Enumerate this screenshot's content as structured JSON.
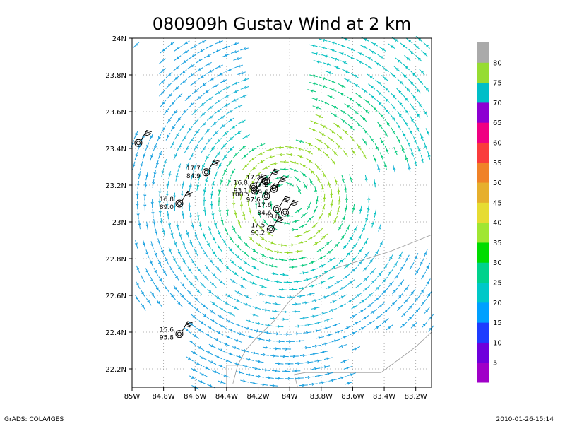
{
  "chart_data": {
    "type": "vector-field",
    "title": "080909h Gustav Wind at 2 km",
    "xlabel": "",
    "ylabel": "",
    "xlim": [
      -85.0,
      -83.1
    ],
    "ylim": [
      22.1,
      24.0
    ],
    "x_ticks": [
      "85W",
      "84.8W",
      "84.6W",
      "84.4W",
      "84.2W",
      "84W",
      "83.8W",
      "83.6W",
      "83.4W",
      "83.2W"
    ],
    "x_tick_values": [
      -85.0,
      -84.8,
      -84.6,
      -84.4,
      -84.2,
      -84.0,
      -83.8,
      -83.6,
      -83.4,
      -83.2
    ],
    "y_ticks": [
      "22.2N",
      "22.4N",
      "22.6N",
      "22.8N",
      "23N",
      "23.2N",
      "23.4N",
      "23.6N",
      "23.8N",
      "24N"
    ],
    "y_tick_values": [
      22.2,
      22.4,
      22.6,
      22.8,
      23.0,
      23.2,
      23.4,
      23.6,
      23.8,
      24.0
    ],
    "grid": true,
    "storm_center": {
      "lon": -84.02,
      "lat": 23.12
    },
    "colorbar": {
      "labels": [
        "5",
        "10",
        "15",
        "20",
        "25",
        "30",
        "35",
        "40",
        "45",
        "50",
        "55",
        "60",
        "65",
        "70",
        "75",
        "80"
      ],
      "colors": [
        "#a000c8",
        "#6e00dc",
        "#1e3cff",
        "#00a0ff",
        "#00c8c8",
        "#00d28c",
        "#00dc00",
        "#a0e632",
        "#e6dc32",
        "#e6af2d",
        "#f08228",
        "#fa3c3c",
        "#f00082",
        "#8c00d2",
        "#00bec8",
        "#96dc32",
        "#aaaaaa"
      ]
    },
    "observations": [
      {
        "lon": -84.53,
        "lat": 23.27,
        "upper": "17.7",
        "lower": "84.9"
      },
      {
        "lon": -84.7,
        "lat": 23.1,
        "upper": "16.8",
        "lower": "89.0"
      },
      {
        "lon": -84.23,
        "lat": 23.19,
        "upper": "16.8",
        "lower": "93.1"
      },
      {
        "lon": -84.22,
        "lat": 23.17,
        "upper": "",
        "lower": "100.5"
      },
      {
        "lon": -84.15,
        "lat": 23.22,
        "upper": "17.2",
        "lower": ""
      },
      {
        "lon": -84.1,
        "lat": 23.18,
        "upper": "17.2",
        "lower": "89.6"
      },
      {
        "lon": -84.15,
        "lat": 23.14,
        "upper": "",
        "lower": "97.6"
      },
      {
        "lon": -84.08,
        "lat": 23.07,
        "upper": "17.6",
        "lower": "84.6"
      },
      {
        "lon": -84.03,
        "lat": 23.05,
        "upper": "",
        "lower": "89.8"
      },
      {
        "lon": -84.12,
        "lat": 22.96,
        "upper": "17.5",
        "lower": "90.2"
      },
      {
        "lon": -84.7,
        "lat": 22.39,
        "upper": "15.6",
        "lower": "95.8"
      },
      {
        "lon": -84.96,
        "lat": 23.43,
        "upper": "",
        "lower": ""
      }
    ]
  },
  "footer": {
    "left": "GrADS: COLA/IGES",
    "right": "2010-01-26-15:14"
  }
}
